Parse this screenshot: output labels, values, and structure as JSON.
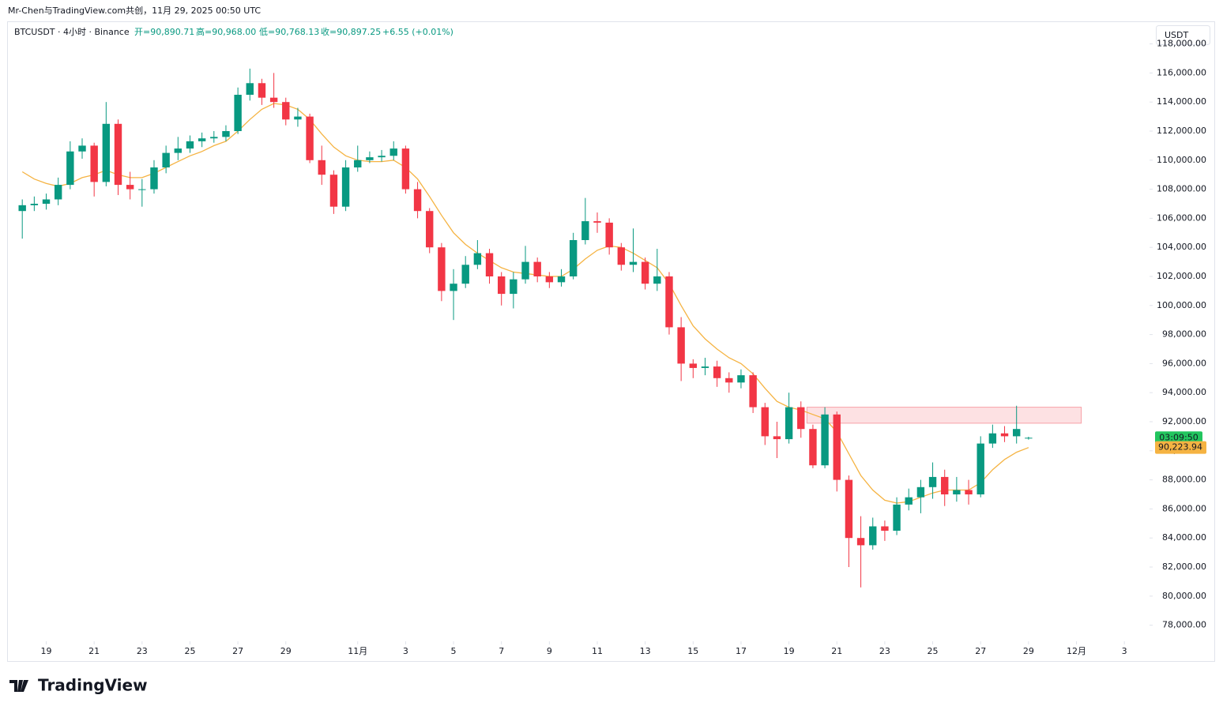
{
  "chart_data": {
    "type": "candlestick",
    "attribution": "Mr-Chen与TradingView.com共创，11月 29, 2025 00:50 UTC",
    "title": "BTCUSDT · 4小时 · Binance",
    "ohlc_legend": [
      "开=90,890.71",
      "高=90,968.00",
      "低=90,768.13",
      "收=90,897.25",
      "+6.55 (+0.01%)"
    ],
    "currency": "USDT",
    "brand": "TradingView",
    "up_color": "#089981",
    "down_color": "#f23645",
    "open": [
      106500,
      106900,
      107000,
      107300,
      108300,
      110600,
      111000,
      108500,
      112500,
      108300,
      108000,
      108000,
      109500,
      110500,
      110800,
      111300,
      111500,
      111600,
      112000,
      114500,
      115300,
      114300,
      114000,
      112800,
      113000,
      110000,
      109000,
      106800,
      109500,
      110000,
      110200,
      110300,
      110800,
      108000,
      106500,
      104000,
      101000,
      101500,
      102800,
      103600,
      102000,
      100800,
      101800,
      103000,
      102000,
      101600,
      102000,
      104500,
      105800,
      105700,
      104000,
      102800,
      103000,
      101500,
      102000,
      98500,
      96000,
      95700,
      95800,
      95000,
      94700,
      95200,
      93000,
      91000,
      90800,
      93000,
      91500,
      89000,
      92500,
      88000,
      84000,
      83500,
      84800,
      84500,
      86300,
      86800,
      87500,
      88200,
      87000,
      87300,
      87000,
      90500,
      91200,
      91000,
      90890.71
    ],
    "high": [
      107300,
      107500,
      107700,
      108800,
      111300,
      111500,
      111200,
      114000,
      112800,
      109200,
      108700,
      110000,
      111000,
      111600,
      111700,
      111900,
      112000,
      112400,
      115000,
      116300,
      115600,
      116000,
      114300,
      113600,
      113200,
      111000,
      109300,
      110000,
      111000,
      110600,
      110700,
      111300,
      111000,
      108500,
      106700,
      104300,
      102500,
      103400,
      104500,
      103900,
      102300,
      102300,
      104100,
      103300,
      102300,
      102500,
      105000,
      107400,
      106400,
      106000,
      104300,
      105300,
      103300,
      103900,
      102300,
      99200,
      96300,
      96400,
      96200,
      95400,
      95600,
      95400,
      93300,
      92000,
      94000,
      93400,
      91800,
      93000,
      92700,
      88300,
      85500,
      85400,
      85200,
      86800,
      87400,
      88000,
      89200,
      88700,
      88200,
      88000,
      91000,
      91800,
      91700,
      93100,
      90968
    ],
    "low": [
      104600,
      106500,
      106600,
      106900,
      108000,
      110100,
      107500,
      108200,
      107600,
      107300,
      106800,
      107700,
      109100,
      110000,
      110500,
      110900,
      111200,
      111300,
      111800,
      114100,
      113800,
      113600,
      112400,
      112300,
      109800,
      108300,
      106300,
      106500,
      109200,
      109800,
      109900,
      110000,
      107700,
      106000,
      103600,
      100300,
      99000,
      101200,
      102500,
      101500,
      100000,
      99800,
      101500,
      101600,
      101200,
      101300,
      101800,
      104200,
      105000,
      103500,
      102400,
      102300,
      101100,
      101000,
      98000,
      94800,
      95000,
      95200,
      94400,
      94000,
      94300,
      92600,
      90400,
      89500,
      90500,
      90900,
      88800,
      88800,
      87200,
      82000,
      80600,
      83200,
      83800,
      84200,
      85900,
      85700,
      86700,
      86200,
      86500,
      86300,
      86800,
      90200,
      90600,
      90500,
      90768.13
    ],
    "close": [
      106900,
      107000,
      107300,
      108300,
      110600,
      111000,
      108500,
      112500,
      108300,
      108000,
      108000,
      109500,
      110500,
      110800,
      111300,
      111500,
      111600,
      112000,
      114500,
      115300,
      114300,
      114000,
      112800,
      113000,
      110000,
      109000,
      106800,
      109500,
      110000,
      110200,
      110300,
      110800,
      108000,
      106500,
      104000,
      101000,
      101500,
      102800,
      103600,
      102000,
      100800,
      101800,
      103000,
      102000,
      101600,
      102000,
      104500,
      105800,
      105700,
      104000,
      102800,
      103000,
      101500,
      102000,
      98500,
      96000,
      95700,
      95800,
      95000,
      94700,
      95200,
      93000,
      91000,
      90800,
      93000,
      91500,
      89000,
      92500,
      88000,
      84000,
      83500,
      84800,
      84500,
      86300,
      86800,
      87500,
      88200,
      87000,
      87300,
      87000,
      90500,
      91200,
      91000,
      91500,
      90897.25
    ],
    "last_price_countdown": "03:09:50",
    "ma": {
      "color": "#f5b342",
      "values": [
        109200,
        108700,
        108400,
        108200,
        108400,
        108800,
        109000,
        109300,
        109000,
        108800,
        108800,
        109100,
        109500,
        109900,
        110300,
        110600,
        111000,
        111300,
        112000,
        112800,
        113500,
        113900,
        113800,
        113500,
        112800,
        111800,
        110900,
        110300,
        110000,
        109900,
        109900,
        110000,
        109500,
        108700,
        107500,
        106200,
        105000,
        104200,
        103600,
        103100,
        102600,
        102300,
        102200,
        102100,
        102000,
        102000,
        102500,
        103200,
        103800,
        104100,
        104000,
        103600,
        103100,
        102600,
        101500,
        100000,
        98600,
        97700,
        97000,
        96400,
        96000,
        95300,
        94300,
        93400,
        93000,
        92800,
        92500,
        92200,
        91300,
        89800,
        88300,
        87300,
        86600,
        86400,
        86500,
        86800,
        87100,
        87300,
        87300,
        87300,
        87800,
        88700,
        89400,
        89900,
        90223.94
      ],
      "last_label": "90,223.94"
    },
    "zone": {
      "x": [
        65.5,
        88.4
      ],
      "y": [
        91900,
        93000
      ],
      "fill": "rgba(242,54,69,0.15)",
      "stroke": "#f7a1a8"
    },
    "xlim": [
      -1.2,
      94.1
    ],
    "xticks": [
      {
        "value": 2,
        "label": "19"
      },
      {
        "value": 6,
        "label": "21"
      },
      {
        "value": 10,
        "label": "23"
      },
      {
        "value": 14,
        "label": "25"
      },
      {
        "value": 18,
        "label": "27"
      },
      {
        "value": 22,
        "label": "29"
      },
      {
        "value": 28,
        "label": "11月"
      },
      {
        "value": 32,
        "label": "3"
      },
      {
        "value": 36,
        "label": "5"
      },
      {
        "value": 40,
        "label": "7"
      },
      {
        "value": 44,
        "label": "9"
      },
      {
        "value": 48,
        "label": "11"
      },
      {
        "value": 52,
        "label": "13"
      },
      {
        "value": 56,
        "label": "15"
      },
      {
        "value": 60,
        "label": "17"
      },
      {
        "value": 64,
        "label": "19"
      },
      {
        "value": 68,
        "label": "21"
      },
      {
        "value": 72,
        "label": "23"
      },
      {
        "value": 76,
        "label": "25"
      },
      {
        "value": 80,
        "label": "27"
      },
      {
        "value": 84,
        "label": "29"
      },
      {
        "value": 88,
        "label": "12月"
      },
      {
        "value": 92,
        "label": "3"
      }
    ],
    "ylim": [
      77000,
      119500
    ],
    "yticks": [
      {
        "value": 78000,
        "label": "78,000.00"
      },
      {
        "value": 80000,
        "label": "80,000.00"
      },
      {
        "value": 82000,
        "label": "82,000.00"
      },
      {
        "value": 84000,
        "label": "84,000.00"
      },
      {
        "value": 86000,
        "label": "86,000.00"
      },
      {
        "value": 88000,
        "label": "88,000.00"
      },
      {
        "value": 90000,
        "label": "90,000.00"
      },
      {
        "value": 92000,
        "label": "92,000.00"
      },
      {
        "value": 94000,
        "label": "94,000.00"
      },
      {
        "value": 96000,
        "label": "96,000.00"
      },
      {
        "value": 98000,
        "label": "98,000.00"
      },
      {
        "value": 100000,
        "label": "100,000.00"
      },
      {
        "value": 102000,
        "label": "102,000.00"
      },
      {
        "value": 104000,
        "label": "104,000.00"
      },
      {
        "value": 106000,
        "label": "106,000.00"
      },
      {
        "value": 108000,
        "label": "108,000.00"
      },
      {
        "value": 110000,
        "label": "110,000.00"
      },
      {
        "value": 112000,
        "label": "112,000.00"
      },
      {
        "value": 114000,
        "label": "114,000.00"
      },
      {
        "value": 116000,
        "label": "116,000.00"
      },
      {
        "value": 118000,
        "label": "118,000.00"
      }
    ]
  }
}
